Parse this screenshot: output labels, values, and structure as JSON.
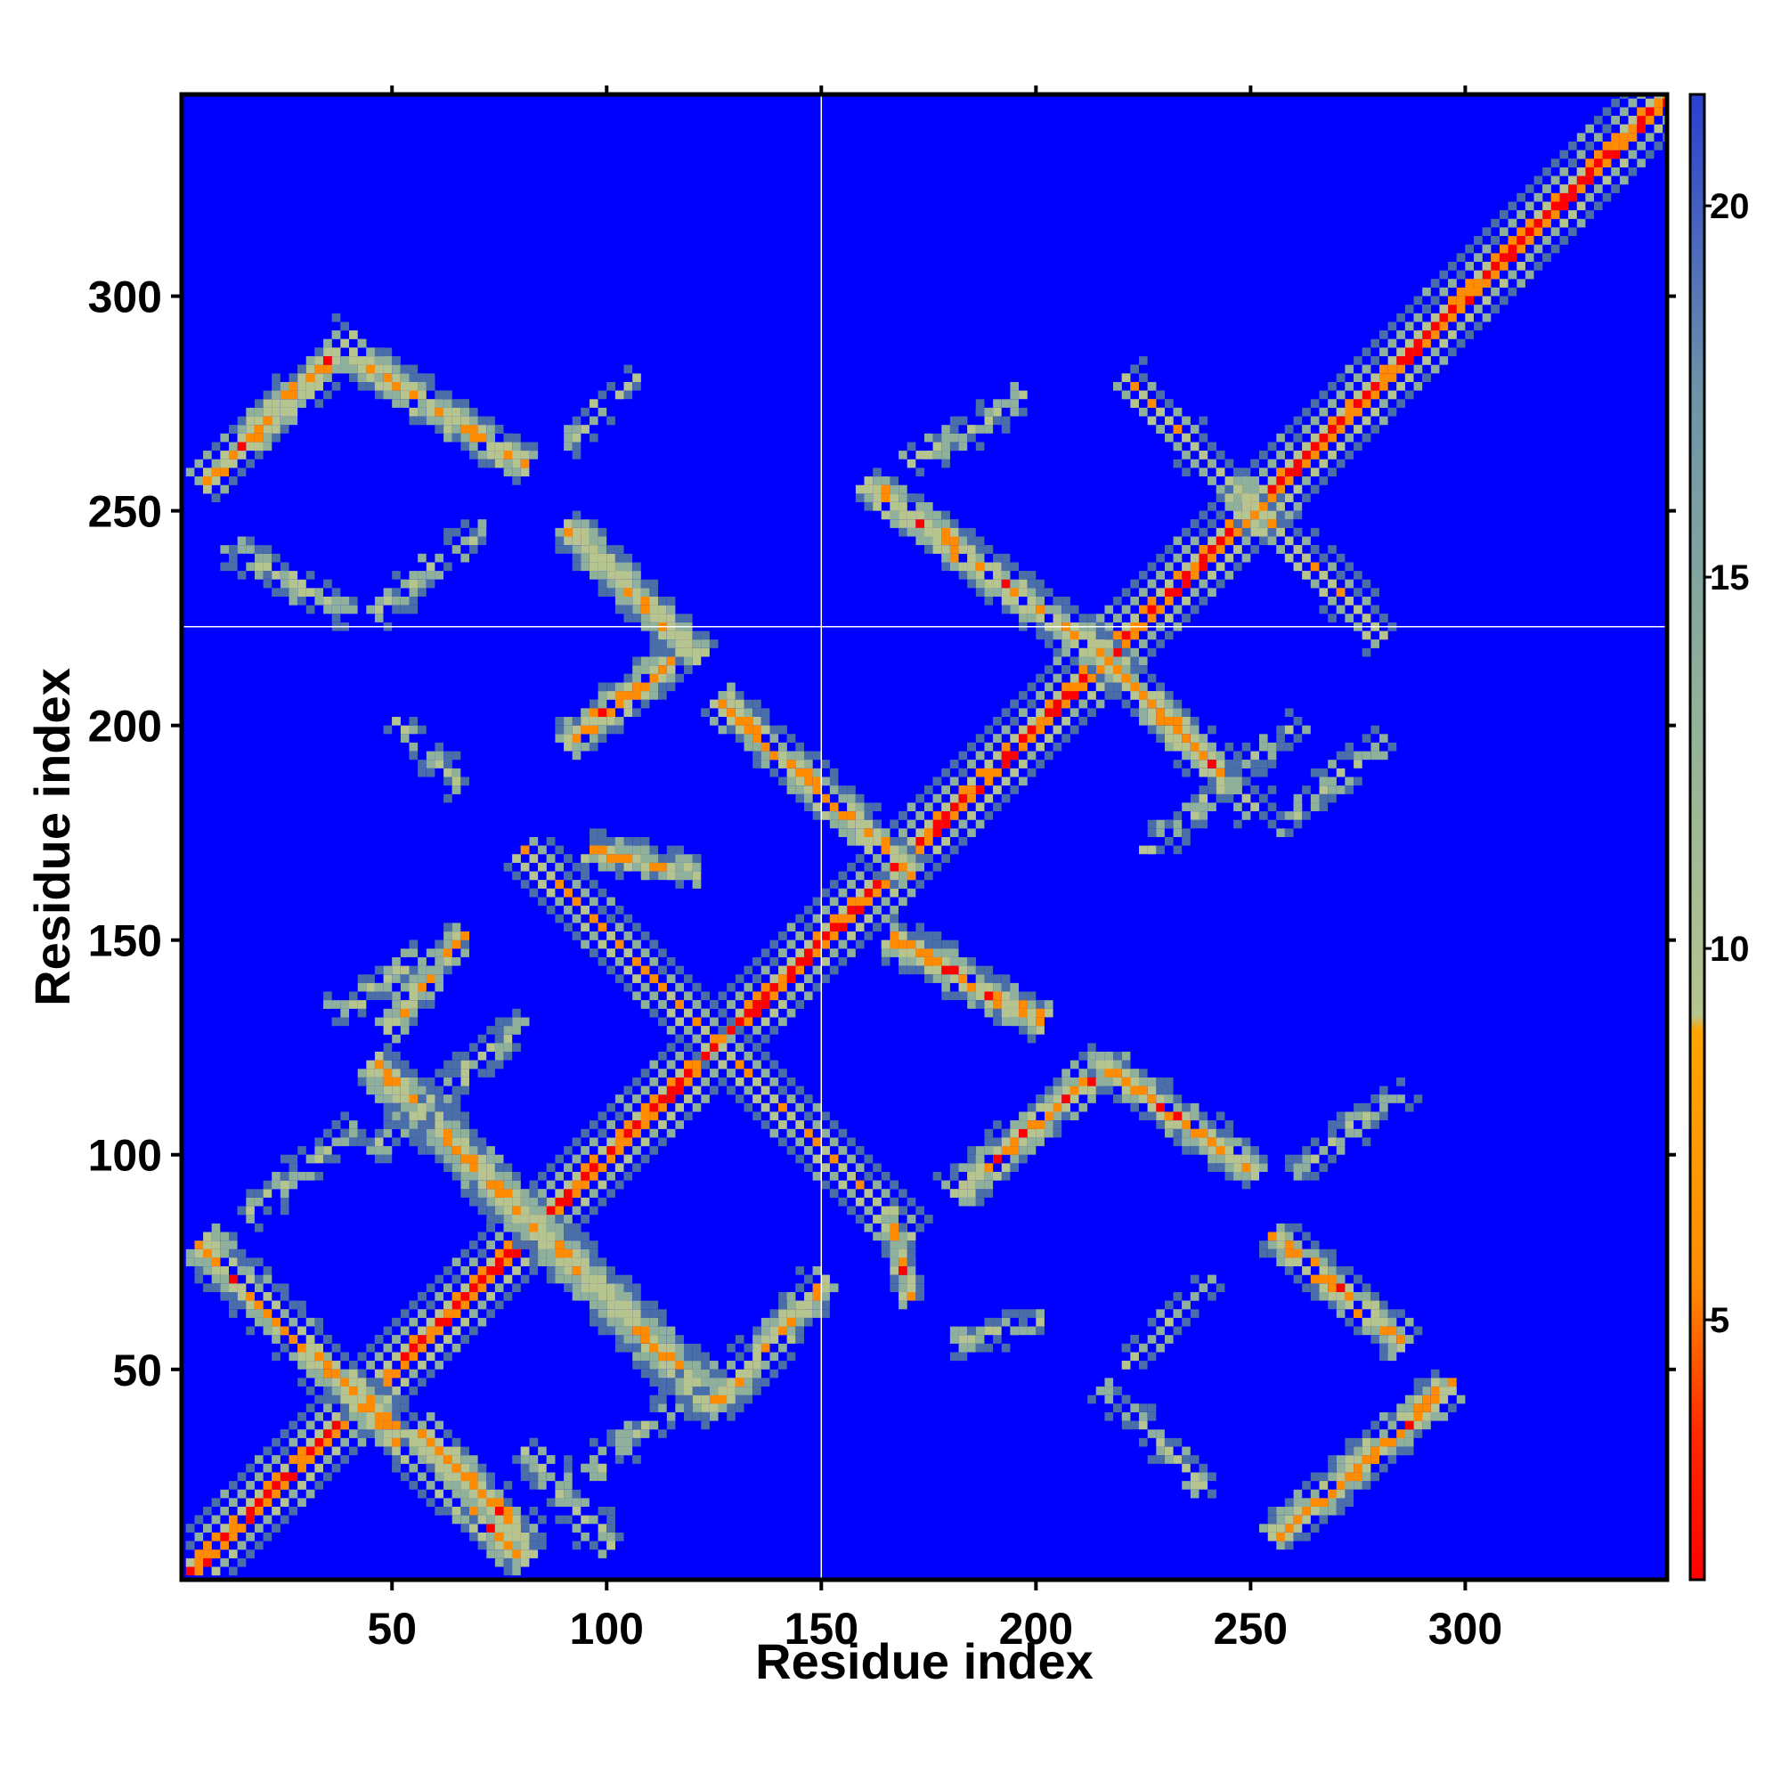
{
  "chart_data": {
    "type": "heatmap",
    "title": "",
    "xlabel": "Residue index",
    "ylabel": "Residue index",
    "xlim": [
      1,
      347
    ],
    "ylim": [
      1,
      347
    ],
    "x_ticks": [
      "50",
      "100",
      "150",
      "200",
      "250",
      "300"
    ],
    "y_ticks": [
      "50",
      "100",
      "150",
      "200",
      "250",
      "300"
    ],
    "colorbar": {
      "min": 1.5,
      "max": 21.5,
      "ticks": [
        "5",
        "10",
        "15",
        "20"
      ],
      "colors": {
        "background": "#0000ff",
        "far": "#4a6fa8",
        "mid": "#8fb09a",
        "light": "#b6c48f",
        "orange": "#ff8c00",
        "near": "#ff0000"
      }
    },
    "values_description_units": "residue distance",
    "crosshair": {
      "x": 150,
      "y": 223
    },
    "bands": [
      {
        "x1": 1,
        "y1": 1,
        "x2": 347,
        "y2": 347,
        "w": 6,
        "peak": 1.5
      },
      {
        "x1": 5,
        "y1": 78,
        "x2": 80,
        "y2": 5,
        "w": 5,
        "peak": 5
      },
      {
        "x1": 45,
        "y1": 120,
        "x2": 125,
        "y2": 40,
        "w": 5,
        "peak": 5
      },
      {
        "x1": 55,
        "y1": 35,
        "x2": 80,
        "y2": 10,
        "w": 4,
        "peak": 5
      },
      {
        "x1": 80,
        "y1": 30,
        "x2": 100,
        "y2": 8,
        "w": 4,
        "peak": 9
      },
      {
        "x1": 80,
        "y1": 170,
        "x2": 170,
        "y2": 80,
        "w": 5,
        "peak": 5
      },
      {
        "x1": 95,
        "y1": 170,
        "x2": 120,
        "y2": 165,
        "w": 3,
        "peak": 6
      },
      {
        "x1": 48,
        "y1": 128,
        "x2": 65,
        "y2": 150,
        "w": 3,
        "peak": 6
      },
      {
        "x1": 35,
        "y1": 132,
        "x2": 55,
        "y2": 145,
        "w": 3,
        "peak": 10
      },
      {
        "x1": 15,
        "y1": 85,
        "x2": 40,
        "y2": 105,
        "w": 3,
        "peak": 10
      },
      {
        "x1": 45,
        "y1": 100,
        "x2": 80,
        "y2": 130,
        "w": 3,
        "peak": 10
      },
      {
        "x1": 125,
        "y1": 42,
        "x2": 150,
        "y2": 70,
        "w": 4,
        "peak": 5
      },
      {
        "x1": 95,
        "y1": 25,
        "x2": 125,
        "y2": 50,
        "w": 3,
        "peak": 10
      },
      {
        "x1": 90,
        "y1": 195,
        "x2": 115,
        "y2": 215,
        "w": 4,
        "peak": 5
      },
      {
        "x1": 90,
        "y1": 245,
        "x2": 120,
        "y2": 215,
        "w": 4,
        "peak": 5
      },
      {
        "x1": 90,
        "y1": 265,
        "x2": 105,
        "y2": 280,
        "w": 3,
        "peak": 10
      },
      {
        "x1": 45,
        "y1": 225,
        "x2": 70,
        "y2": 245,
        "w": 3,
        "peak": 10
      },
      {
        "x1": 50,
        "y1": 200,
        "x2": 65,
        "y2": 185,
        "w": 3,
        "peak": 10
      },
      {
        "x1": 5,
        "y1": 255,
        "x2": 40,
        "y2": 290,
        "w": 4,
        "peak": 5
      },
      {
        "x1": 40,
        "y1": 285,
        "x2": 80,
        "y2": 260,
        "w": 4,
        "peak": 6
      },
      {
        "x1": 10,
        "y1": 240,
        "x2": 40,
        "y2": 225,
        "w": 3,
        "peak": 10
      },
      {
        "x1": 125,
        "y1": 205,
        "x2": 170,
        "y2": 165,
        "w": 4,
        "peak": 5
      },
      {
        "x1": 160,
        "y1": 255,
        "x2": 215,
        "y2": 215,
        "w": 4,
        "peak": 5
      },
      {
        "x1": 165,
        "y1": 150,
        "x2": 200,
        "y2": 130,
        "w": 4,
        "peak": 5
      },
      {
        "x1": 180,
        "y1": 90,
        "x2": 215,
        "y2": 120,
        "w": 4,
        "peak": 5
      },
      {
        "x1": 215,
        "y1": 120,
        "x2": 250,
        "y2": 95,
        "w": 4,
        "peak": 5
      },
      {
        "x1": 215,
        "y1": 215,
        "x2": 250,
        "y2": 180,
        "w": 4,
        "peak": 5
      },
      {
        "x1": 220,
        "y1": 280,
        "x2": 280,
        "y2": 220,
        "w": 4,
        "peak": 5
      },
      {
        "x1": 255,
        "y1": 80,
        "x2": 285,
        "y2": 55,
        "w": 4,
        "peak": 5
      },
      {
        "x1": 255,
        "y1": 10,
        "x2": 295,
        "y2": 45,
        "w": 4,
        "peak": 5
      },
      {
        "x1": 260,
        "y1": 95,
        "x2": 285,
        "y2": 115,
        "w": 3,
        "peak": 10
      },
      {
        "x1": 220,
        "y1": 50,
        "x2": 240,
        "y2": 70,
        "w": 3,
        "peak": 10
      },
      {
        "x1": 215,
        "y1": 45,
        "x2": 240,
        "y2": 20,
        "w": 3,
        "peak": 10
      },
      {
        "x1": 180,
        "y1": 55,
        "x2": 200,
        "y2": 60,
        "w": 3,
        "peak": 10
      },
      {
        "x1": 165,
        "y1": 85,
        "x2": 170,
        "y2": 65,
        "w": 2,
        "peak": 5
      },
      {
        "x1": 170,
        "y1": 260,
        "x2": 195,
        "y2": 275,
        "w": 3,
        "peak": 10
      },
      {
        "x1": 225,
        "y1": 170,
        "x2": 260,
        "y2": 200,
        "w": 3,
        "peak": 10
      },
      {
        "x1": 255,
        "y1": 175,
        "x2": 280,
        "y2": 195,
        "w": 3,
        "peak": 10
      }
    ]
  }
}
